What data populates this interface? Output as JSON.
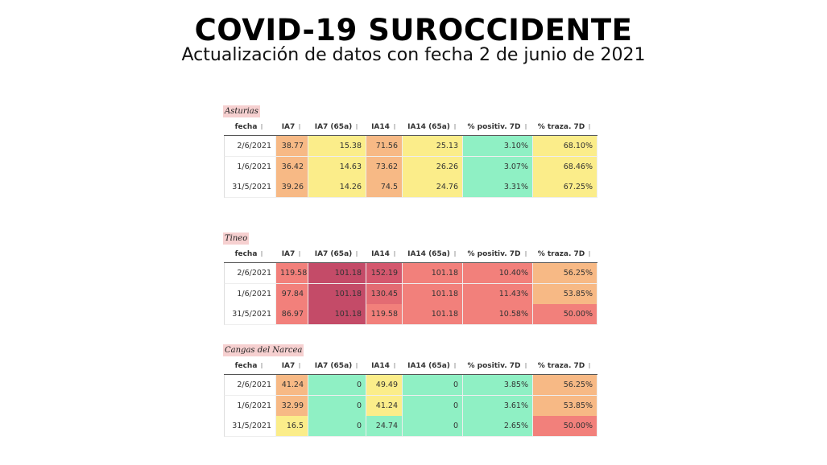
{
  "header": {
    "title": "COVID-19 SUROCCIDENTE",
    "subtitle": "Actualización de datos con fecha 2 de junio de 2021"
  },
  "tables": [
    {
      "title": "Asturias",
      "columns": [
        "fecha",
        "IA7",
        "IA7 (65a)",
        "IA14",
        "IA14 (65a)",
        "% positiv. 7D",
        "% traza. 7D"
      ],
      "rows": [
        [
          "2/6/2021",
          "38.77",
          "15.38",
          "71.56",
          "25.13",
          "3.10%",
          "68.10%"
        ],
        [
          "1/6/2021",
          "36.42",
          "14.63",
          "73.62",
          "26.26",
          "3.07%",
          "68.46%"
        ],
        [
          "31/5/2021",
          "39.26",
          "14.26",
          "74.5",
          "24.76",
          "3.31%",
          "67.25%"
        ]
      ],
      "cell_colors": [
        [
          "#ffffff",
          "#f7b985",
          "#fbed8a",
          "#f7b985",
          "#fbed8a",
          "#8ff0c4",
          "#fbed8a"
        ],
        [
          "#ffffff",
          "#f7b985",
          "#fbed8a",
          "#f7b985",
          "#fbed8a",
          "#8ff0c4",
          "#fbed8a"
        ],
        [
          "#ffffff",
          "#f7b985",
          "#fbed8a",
          "#f7b985",
          "#fbed8a",
          "#8ff0c4",
          "#fbed8a"
        ]
      ]
    },
    {
      "title": "Tineo",
      "columns": [
        "fecha",
        "IA7",
        "IA7 (65a)",
        "IA14",
        "IA14 (65a)",
        "% positiv. 7D",
        "% traza. 7D"
      ],
      "rows": [
        [
          "2/6/2021",
          "119.58",
          "101.18",
          "152.19",
          "101.18",
          "10.40%",
          "56.25%"
        ],
        [
          "1/6/2021",
          "97.84",
          "101.18",
          "130.45",
          "101.18",
          "11.43%",
          "53.85%"
        ],
        [
          "31/5/2021",
          "86.97",
          "101.18",
          "119.58",
          "101.18",
          "10.58%",
          "50.00%"
        ]
      ],
      "cell_colors": [
        [
          "#ffffff",
          "#f2807b",
          "#c44b68",
          "#d4586e",
          "#f2807b",
          "#f2807b",
          "#f7b985"
        ],
        [
          "#ffffff",
          "#f2807b",
          "#c44b68",
          "#e36b73",
          "#f2807b",
          "#f2807b",
          "#f7b985"
        ],
        [
          "#ffffff",
          "#f2807b",
          "#c44b68",
          "#f2807b",
          "#f2807b",
          "#f2807b",
          "#f2807b"
        ]
      ]
    },
    {
      "title": "Cangas del Narcea",
      "columns": [
        "fecha",
        "IA7",
        "IA7 (65a)",
        "IA14",
        "IA14 (65a)",
        "% positiv. 7D",
        "% traza. 7D"
      ],
      "rows": [
        [
          "2/6/2021",
          "41.24",
          "0",
          "49.49",
          "0",
          "3.85%",
          "56.25%"
        ],
        [
          "1/6/2021",
          "32.99",
          "0",
          "41.24",
          "0",
          "3.61%",
          "53.85%"
        ],
        [
          "31/5/2021",
          "16.5",
          "0",
          "24.74",
          "0",
          "2.65%",
          "50.00%"
        ]
      ],
      "cell_colors": [
        [
          "#ffffff",
          "#f7b985",
          "#8ff0c4",
          "#fbed8a",
          "#8ff0c4",
          "#8ff0c4",
          "#f7b985"
        ],
        [
          "#ffffff",
          "#f7b985",
          "#8ff0c4",
          "#fbed8a",
          "#8ff0c4",
          "#8ff0c4",
          "#f7b985"
        ],
        [
          "#ffffff",
          "#fbed8a",
          "#8ff0c4",
          "#8ff0c4",
          "#8ff0c4",
          "#8ff0c4",
          "#f2807b"
        ]
      ]
    }
  ]
}
